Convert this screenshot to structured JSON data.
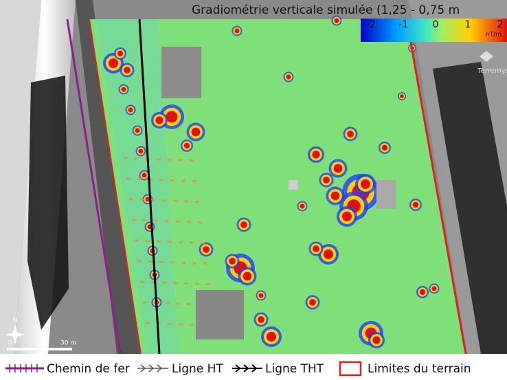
{
  "title": "Gradiométrie verticale simulée (1,25 - 0,75 m",
  "colorbar": {
    "ticks": [
      -2,
      -1,
      0,
      1,
      2
    ],
    "unit": "nT/m"
  },
  "logo": "Terremys",
  "north": "N",
  "scale_bar": {
    "start": "0",
    "end": "30 m"
  },
  "legend": [
    "Chemin de fer",
    "Ligne HT",
    "Ligne THT",
    "Limites du terrain"
  ]
}
